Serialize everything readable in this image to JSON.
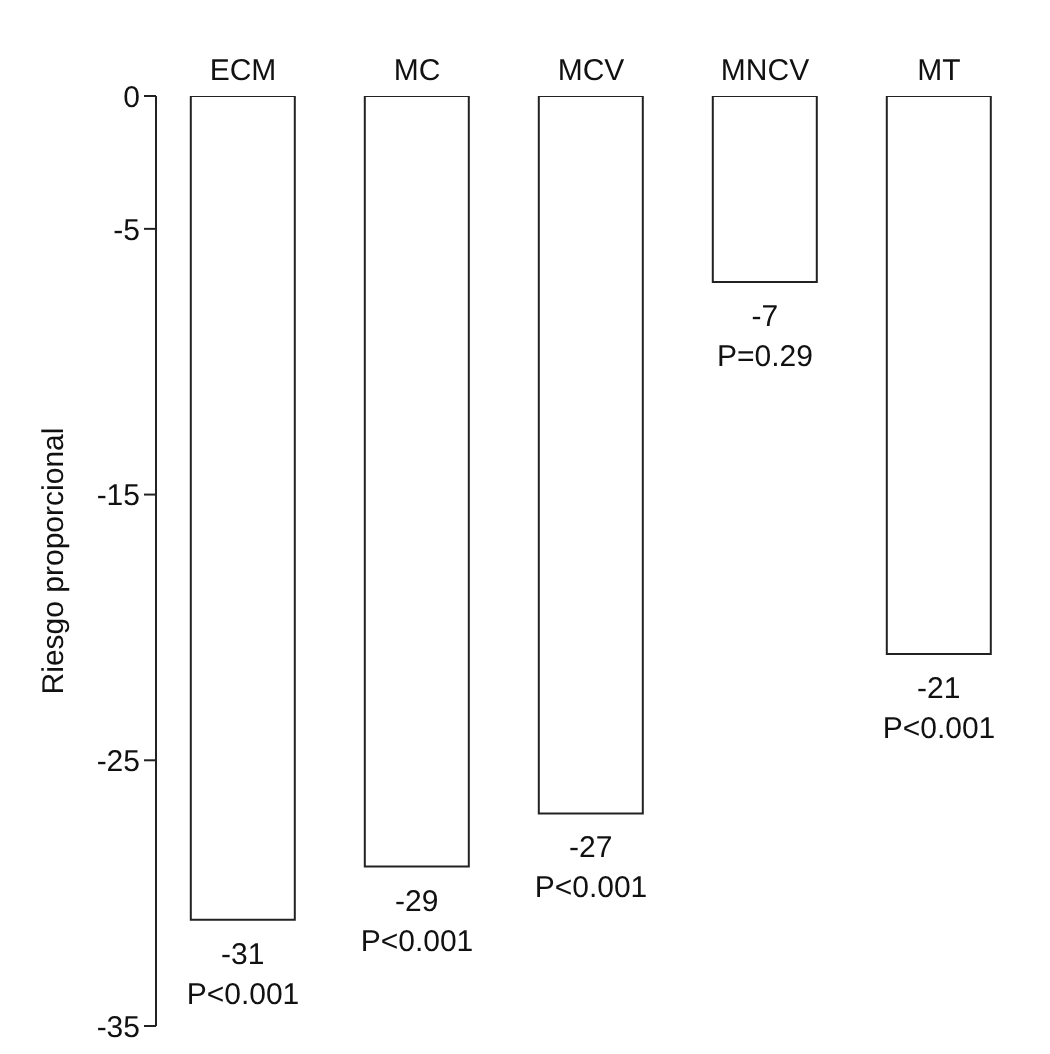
{
  "chart_data": {
    "type": "bar",
    "ylabel": "Riesgo proporcional",
    "categories": [
      "ECM",
      "MC",
      "MCV",
      "MNCV",
      "MT"
    ],
    "values": [
      -31,
      -29,
      -27,
      -7,
      -21
    ],
    "color": "#ffffff",
    "ylim": [
      -35,
      0
    ],
    "yticks": [
      0,
      -5,
      -15,
      -25,
      -35
    ],
    "data_labels": true,
    "grid": false,
    "legend": false,
    "annotations": [
      {
        "text": "P<0.001",
        "x": "ECM",
        "y": -31
      },
      {
        "text": "P<0.001",
        "x": "MC",
        "y": -29
      },
      {
        "text": "P<0.001",
        "x": "MCV",
        "y": -27
      },
      {
        "text": "P=0.29",
        "x": "MNCV",
        "y": -7
      },
      {
        "text": "P<0.001",
        "x": "MT",
        "y": -21
      }
    ]
  }
}
